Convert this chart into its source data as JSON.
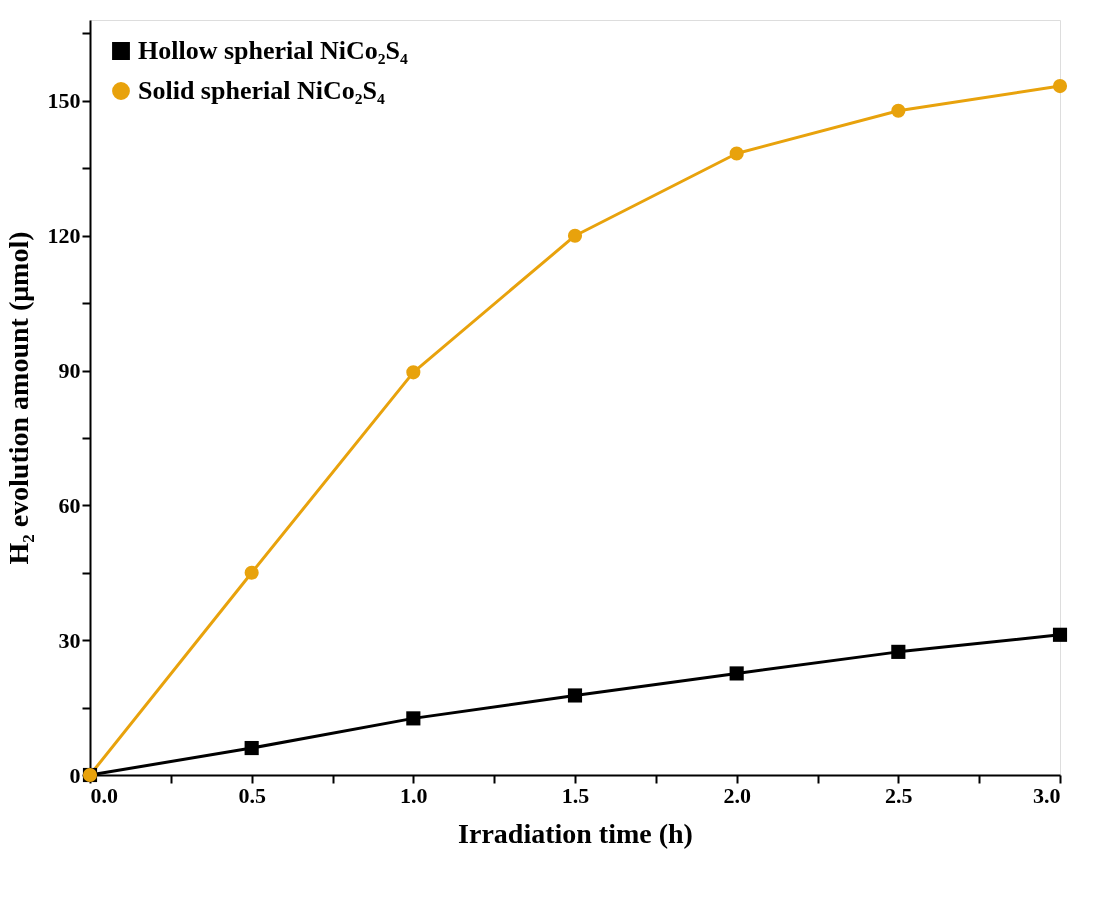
{
  "chart_data": {
    "type": "line",
    "xlabel": "Irradiation time (h)",
    "ylabel": "H₂  evolution amount (μmol)",
    "x": [
      0,
      0.5,
      1.0,
      1.5,
      2.0,
      2.5,
      3.0
    ],
    "series": [
      {
        "name": "Hollow spherial NiCo₂S₄",
        "color": "#000000",
        "marker": "square",
        "values": [
          0,
          6.0,
          12.6,
          17.7,
          22.6,
          27.4,
          31.2
        ]
      },
      {
        "name": "Solid spherial NiCo₂S₄",
        "color": "#e8a20c",
        "marker": "circle",
        "values": [
          0,
          45,
          89.6,
          120,
          138.3,
          147.8,
          153.3
        ]
      }
    ],
    "xlim": [
      0,
      3.0
    ],
    "ylim": [
      0,
      168
    ],
    "xticks": [
      {
        "value": 0,
        "label": "0.0"
      },
      {
        "value": 0.25,
        "label": null
      },
      {
        "value": 0.5,
        "label": "0.5"
      },
      {
        "value": 0.75,
        "label": null
      },
      {
        "value": 1.0,
        "label": "1.0"
      },
      {
        "value": 1.25,
        "label": null
      },
      {
        "value": 1.5,
        "label": "1.5"
      },
      {
        "value": 1.75,
        "label": null
      },
      {
        "value": 2.0,
        "label": "2.0"
      },
      {
        "value": 2.25,
        "label": null
      },
      {
        "value": 2.5,
        "label": "2.5"
      },
      {
        "value": 2.75,
        "label": null
      },
      {
        "value": 3.0,
        "label": "3.0"
      }
    ],
    "yticks": [
      0,
      {
        "value": 15,
        "label": null
      },
      30,
      {
        "value": 45,
        "label": null
      },
      60,
      {
        "value": 75,
        "label": null
      },
      90,
      {
        "value": 105,
        "label": null
      },
      120,
      {
        "value": 135,
        "label": null
      },
      150,
      {
        "value": 165,
        "label": null
      }
    ],
    "grid": false,
    "legend": "top left",
    "line_style": "solid"
  }
}
